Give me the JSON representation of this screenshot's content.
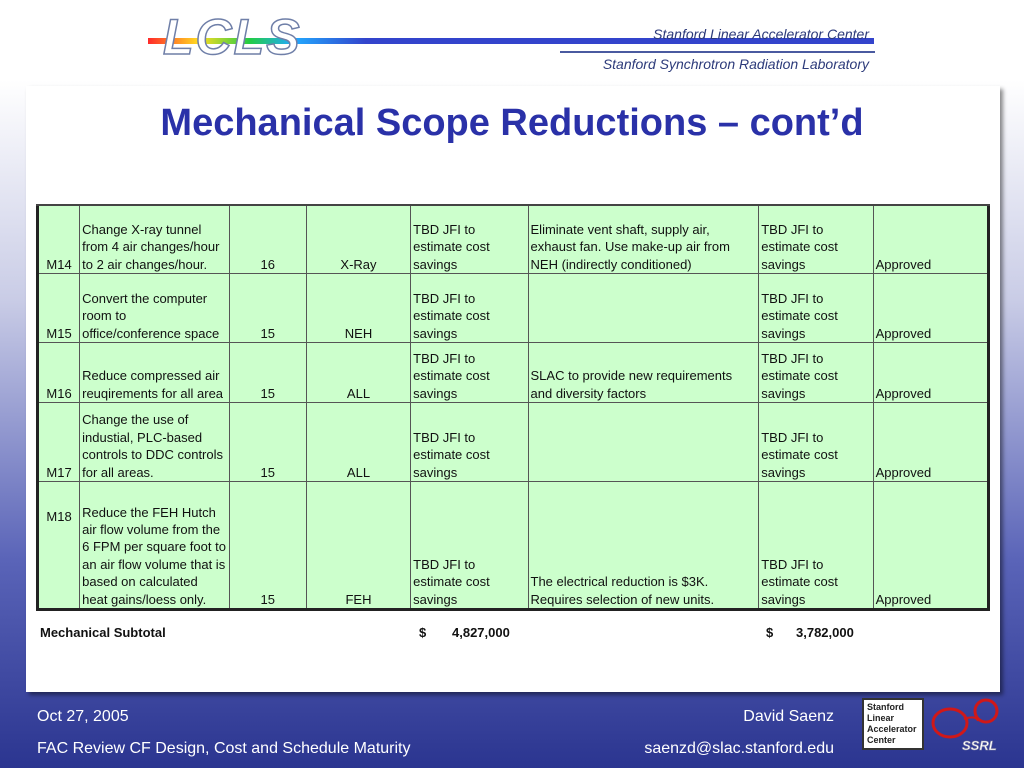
{
  "header": {
    "logo": "LCLS",
    "org_line1": "Stanford Linear Accelerator Center",
    "org_line2": "Stanford Synchrotron Radiation Laboratory"
  },
  "slide": {
    "title": "Mechanical Scope Reductions – cont’d"
  },
  "table": {
    "rows": [
      {
        "id": "M14",
        "description": "Change X-ray tunnel from 4 air changes/hour to 2 air changes/hour.",
        "wbs": "16",
        "building": "X-Ray",
        "estimate": " TBD  JFI to estimate cost savings",
        "comments": "Eliminate vent shaft, supply air, exhaust fan.  Use make-up air from NEH (indirectly conditioned)",
        "savings": " TBD  JFI to estimate cost savings",
        "status": "Approved"
      },
      {
        "id": "M15",
        "description": "Convert the computer room to office/conference space",
        "wbs": "15",
        "building": "NEH",
        "estimate": " TBD  JFI to estimate cost savings",
        "comments": "",
        "savings": " TBD  JFI to estimate cost savings",
        "status": "Approved"
      },
      {
        "id": "M16",
        "description": "Reduce compressed air reuqirements for all area",
        "wbs": "15",
        "building": "ALL",
        "estimate": " TBD  JFI to estimate cost savings",
        "comments": "SLAC to provide new requirements and diversity factors",
        "savings": " TBD  JFI to estimate cost savings",
        "status": "Approved"
      },
      {
        "id": "M17",
        "description": "Change the use of industial, PLC-based controls to DDC controls for all areas.",
        "wbs": "15",
        "building": "ALL",
        "estimate": " TBD  JFI to estimate cost savings",
        "comments": "",
        "savings": " TBD  JFI to estimate cost savings",
        "status": "Approved"
      },
      {
        "id": "M18",
        "description": "Reduce the FEH Hutch air flow volume from the 6 FPM per square foot to an air flow volume that is based on calculated heat gains/loess only.",
        "wbs": "15",
        "building": "FEH",
        "estimate": " TBD  JFI to estimate cost savings",
        "comments": "The electrical reduction is $3K.  Requires selection of new units.",
        "savings": " TBD  JFI to estimate cost savings",
        "status": "Approved"
      }
    ]
  },
  "subtotal": {
    "label": "Mechanical Subtotal",
    "currency1": "$",
    "amount1": "4,827,000",
    "currency2": "$",
    "amount2": "3,782,000"
  },
  "footer": {
    "date": "Oct 27, 2005",
    "event": "FAC Review CF Design, Cost and Schedule Maturity",
    "presenter": "David Saenz",
    "email": "saenzd@slac.stanford.edu",
    "badge_lines": [
      "Stanford",
      "Linear",
      "Accelerator",
      "Center"
    ],
    "ssrl_logo": "SSRL"
  },
  "colors": {
    "title": "#2a31a8",
    "table_fill": "#ccffcc"
  }
}
